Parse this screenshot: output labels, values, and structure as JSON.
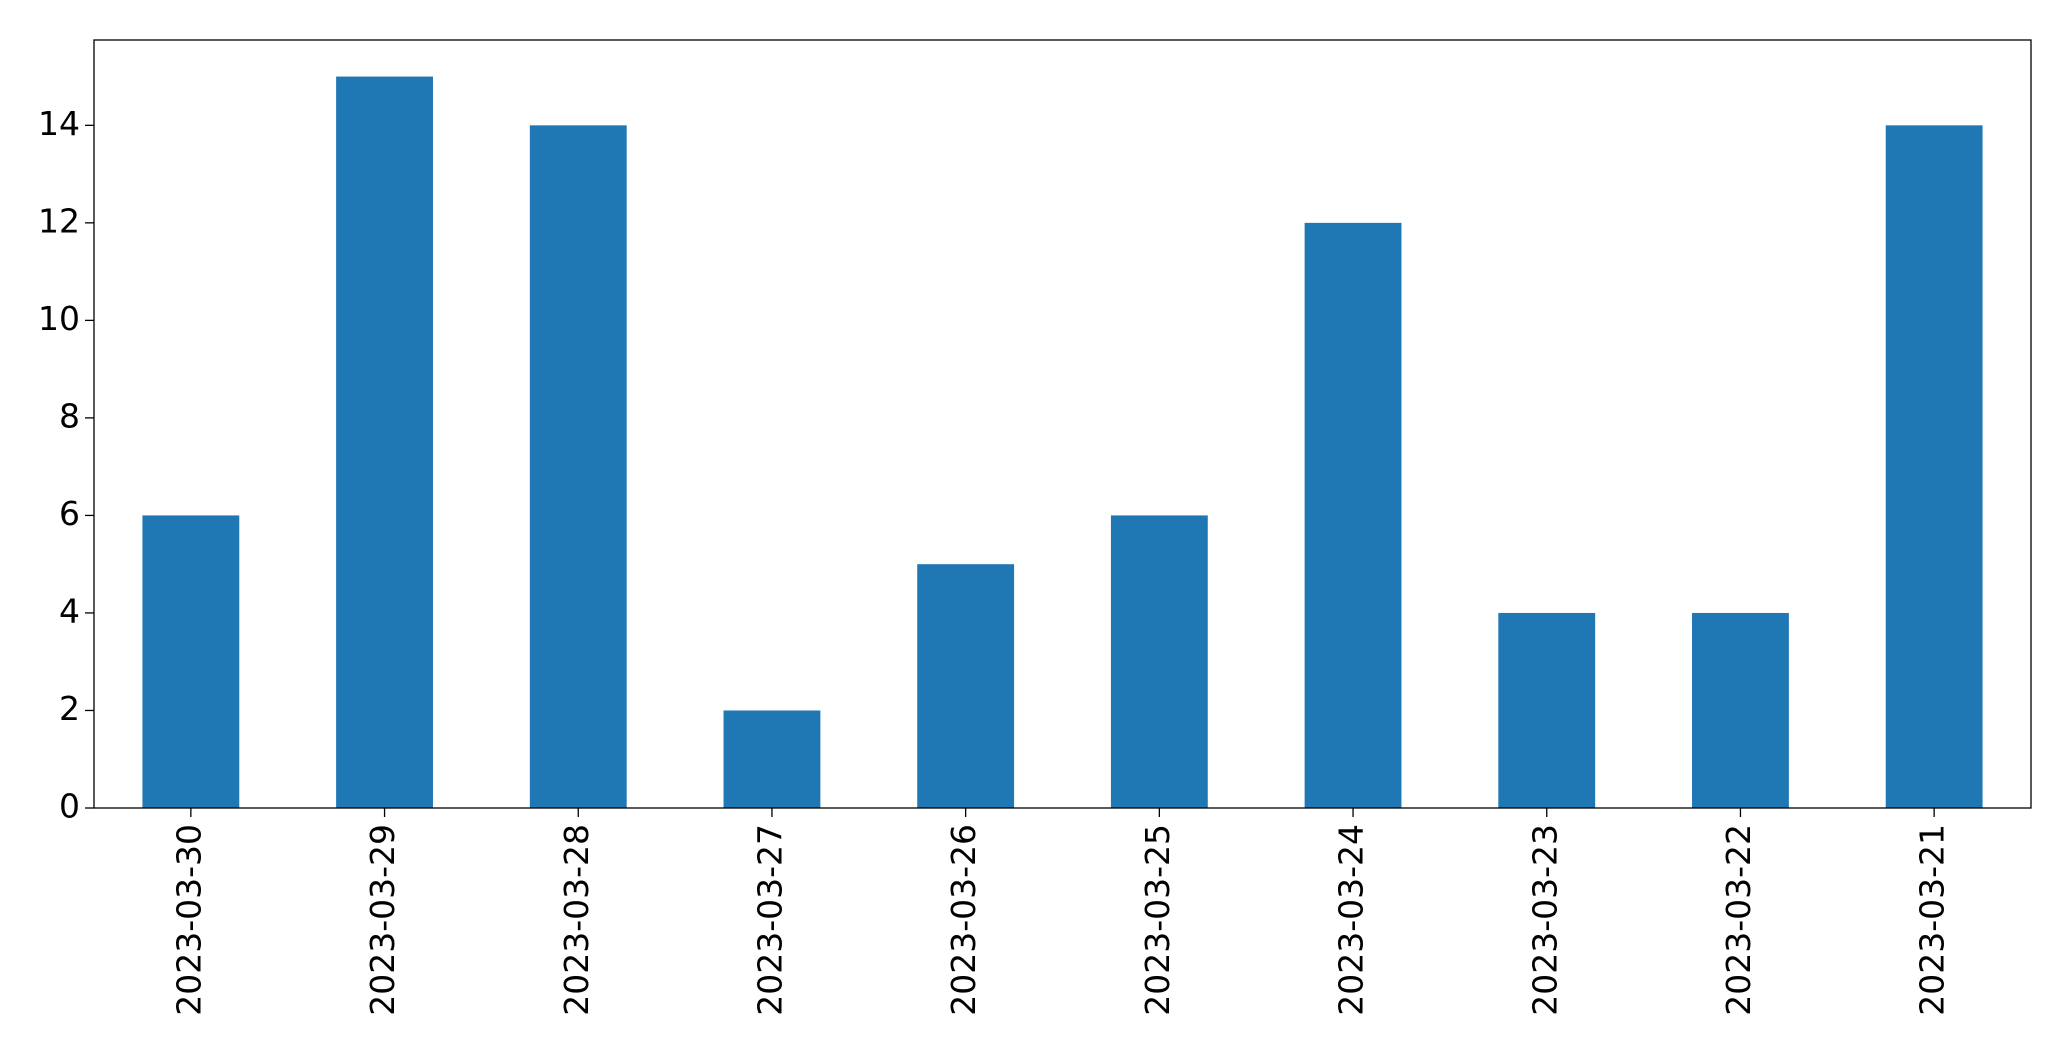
{
  "chart_data": {
    "type": "bar",
    "categories": [
      "2023-03-30",
      "2023-03-29",
      "2023-03-28",
      "2023-03-27",
      "2023-03-26",
      "2023-03-25",
      "2023-03-24",
      "2023-03-23",
      "2023-03-22",
      "2023-03-21"
    ],
    "values": [
      6,
      15,
      14,
      2,
      5,
      6,
      12,
      4,
      4,
      14
    ],
    "color": "#1f77b4",
    "ylim": [
      0,
      15.75
    ],
    "yticks": [
      0,
      2,
      4,
      6,
      8,
      10,
      12,
      14
    ],
    "grid": false
  }
}
